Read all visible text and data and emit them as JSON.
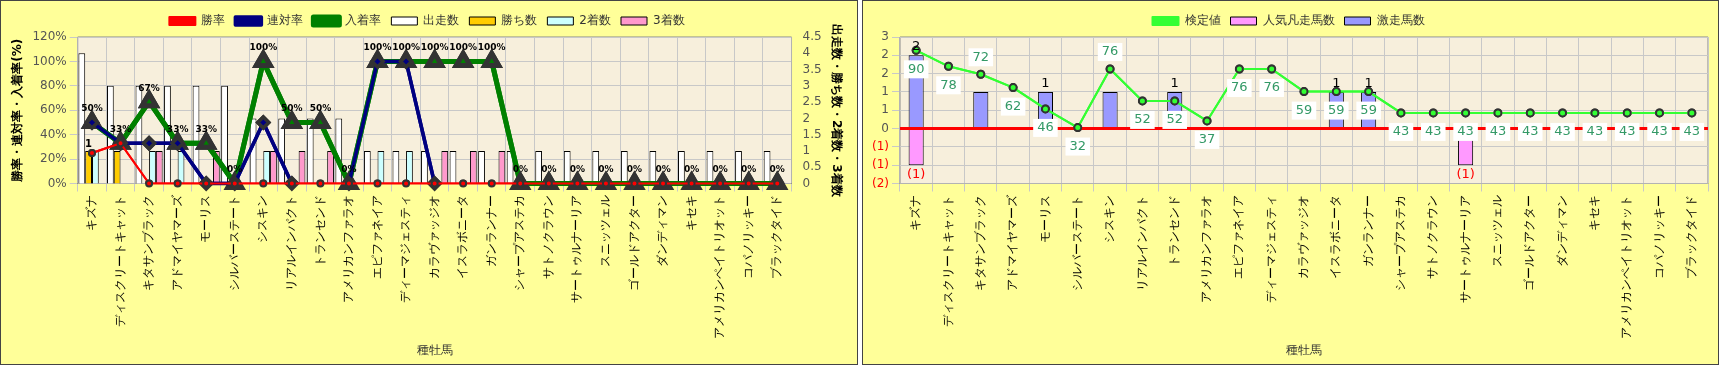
{
  "chart_data": [
    {
      "type": "bar",
      "xlabel": "種牡馬",
      "ylabel": "勝率・連対率・入着率(%)",
      "y2label": "出走数・勝ち数・2着数・3着数",
      "categories": [
        "キズナ",
        "ディスクリートキャット",
        "キタサンブラック",
        "アドマイヤマーズ",
        "モーリス",
        "シルバーステート",
        "シスキン",
        "リアルインパクト",
        "トランセンド",
        "アメリカンファラオ",
        "エピファネイア",
        "ディーマジェスティ",
        "カラヴァッジオ",
        "イスラボニータ",
        "ガンランナー",
        "シャープアステカ",
        "サトノクラウン",
        "サートゥルナーリア",
        "スニッツェル",
        "ゴールドアクター",
        "ダンディマン",
        "キセキ",
        "アメリカンペイトリオット",
        "コパノリッキー",
        "ブラックタイド"
      ],
      "ylim": [
        0,
        120
      ],
      "yticks": [
        {
          "value": 0,
          "label": "0%"
        },
        {
          "value": 20,
          "label": "20%"
        },
        {
          "value": 40,
          "label": "40%"
        },
        {
          "value": 60,
          "label": "60%"
        },
        {
          "value": 80,
          "label": "80%"
        },
        {
          "value": 100,
          "label": "100%"
        },
        {
          "value": 120,
          "label": "120%"
        }
      ],
      "y2lim": [
        0,
        4.5
      ],
      "y2ticks": [
        0,
        0.5,
        1,
        1.5,
        2,
        2.5,
        3,
        3.5,
        4,
        4.5
      ],
      "grid": true,
      "legend": "top",
      "series": [
        {
          "name": "出走数",
          "axis": "y2",
          "color": "#ffffff",
          "values": [
            4,
            3,
            3,
            3,
            3,
            3,
            2,
            2,
            2,
            2,
            1,
            1,
            1,
            1,
            1,
            1,
            1,
            1,
            1,
            1,
            1,
            1,
            1,
            1,
            1
          ]
        },
        {
          "name": "勝ち数",
          "axis": "y2",
          "color": "#ffcc00",
          "values": [
            1,
            1,
            0,
            0,
            0,
            0,
            0,
            0,
            0,
            0,
            0,
            0,
            0,
            0,
            0,
            0,
            0,
            0,
            0,
            0,
            0,
            0,
            0,
            0,
            0
          ],
          "value_labels": [
            "1",
            null,
            null,
            null,
            null,
            null,
            null,
            null,
            null,
            null,
            null,
            null,
            null,
            null,
            null,
            null,
            null,
            null,
            null,
            null,
            null,
            null,
            null,
            null,
            null
          ]
        },
        {
          "name": "2着数",
          "axis": "y2",
          "color": "#ccffff",
          "values": [
            1,
            0,
            1,
            1,
            0,
            0,
            1,
            0,
            0,
            0,
            1,
            1,
            0,
            0,
            0,
            0,
            0,
            0,
            0,
            0,
            0,
            0,
            0,
            0,
            0
          ]
        },
        {
          "name": "3着数",
          "axis": "y2",
          "color": "#ff99cc",
          "values": [
            0,
            0,
            1,
            0,
            1,
            0,
            1,
            1,
            1,
            0,
            0,
            0,
            1,
            1,
            1,
            0,
            0,
            0,
            0,
            0,
            0,
            0,
            0,
            0,
            0
          ]
        },
        {
          "name": "入着率",
          "type": "line",
          "color": "#008000",
          "marker": "triangle",
          "values": [
            50,
            33,
            67,
            33,
            33,
            0,
            100,
            50,
            50,
            0,
            100,
            100,
            100,
            100,
            100,
            0,
            0,
            0,
            0,
            0,
            0,
            0,
            0,
            0,
            0
          ],
          "value_labels": [
            "50%",
            "33%",
            "67%",
            "33%",
            "33%",
            "0%",
            "100%",
            "50%",
            "50%",
            "0%",
            "100%",
            "100%",
            "100%",
            "100%",
            "100%",
            "0%",
            "0%",
            "0%",
            "0%",
            "0%",
            "0%",
            "0%",
            "0%",
            "0%",
            "0%"
          ]
        },
        {
          "name": "連対率",
          "type": "line",
          "color": "#000080",
          "marker": "diamond",
          "values": [
            50,
            33,
            33,
            33,
            0,
            0,
            50,
            0,
            null,
            0,
            100,
            100,
            0,
            null,
            null,
            null,
            null,
            null,
            null,
            null,
            null,
            null,
            null,
            null,
            null
          ]
        },
        {
          "name": "勝率",
          "type": "line",
          "color": "#ff0000",
          "marker": "circle",
          "values": [
            25,
            33,
            0,
            0,
            0,
            0,
            0,
            0,
            0,
            0,
            0,
            0,
            0,
            0,
            0,
            0,
            0,
            0,
            0,
            0,
            0,
            0,
            0,
            0,
            0
          ]
        }
      ]
    },
    {
      "type": "bar",
      "xlabel": "種牡馬",
      "categories": [
        "キズナ",
        "ディスクリートキャット",
        "キタサンブラック",
        "アドマイヤマーズ",
        "モーリス",
        "シルバーステート",
        "シスキン",
        "リアルインパクト",
        "トランセンド",
        "アメリカンファラオ",
        "エピファネイア",
        "ディーマジェスティ",
        "カラヴァッジオ",
        "イスラボニータ",
        "ガンランナー",
        "シャープアステカ",
        "サトノクラウン",
        "サートゥルナーリア",
        "スニッツェル",
        "ゴールドアクター",
        "ダンディマン",
        "キセキ",
        "アメリカンペイトリオット",
        "コパノリッキー",
        "ブラックタイド"
      ],
      "ylim": [
        -1.5,
        2.5
      ],
      "yticks": [
        {
          "value": -1.5,
          "label": "(2)"
        },
        {
          "value": -1,
          "label": "(1)"
        },
        {
          "value": -0.5,
          "label": "(1)"
        },
        {
          "value": 0,
          "label": "0"
        },
        {
          "value": 0.5,
          "label": "1"
        },
        {
          "value": 1,
          "label": "1"
        },
        {
          "value": 1.5,
          "label": "2"
        },
        {
          "value": 2,
          "label": "2"
        },
        {
          "value": 2.5,
          "label": "3"
        }
      ],
      "y2lim": [
        -10,
        100
      ],
      "grid": true,
      "legend": "top",
      "stacked": true,
      "ref_lines": [
        {
          "axis": "y",
          "value": 0,
          "color": "#ff0000"
        }
      ],
      "series": [
        {
          "name": "人気凡走馬数",
          "color": "#ff99ff",
          "values": [
            -1,
            0,
            0,
            0,
            0,
            0,
            0,
            0,
            0,
            0,
            0,
            0,
            0,
            0,
            0,
            0,
            0,
            -1,
            0,
            0,
            0,
            0,
            0,
            0,
            0
          ],
          "value_labels": [
            "(1)",
            null,
            null,
            null,
            null,
            null,
            null,
            null,
            null,
            null,
            null,
            null,
            null,
            null,
            null,
            null,
            null,
            "(1)",
            null,
            null,
            null,
            null,
            null,
            null,
            null
          ]
        },
        {
          "name": "激走馬数",
          "color": "#9999ff",
          "values": [
            2,
            0,
            1,
            0,
            1,
            0,
            1,
            0,
            1,
            0,
            0,
            0,
            0,
            1,
            1,
            0,
            0,
            0,
            0,
            0,
            0,
            0,
            0,
            0,
            0
          ],
          "value_labels": [
            "2",
            null,
            null,
            null,
            "1",
            null,
            null,
            null,
            "1",
            null,
            null,
            null,
            null,
            "1",
            "1",
            null,
            null,
            null,
            null,
            null,
            null,
            null,
            null,
            null,
            null
          ]
        },
        {
          "name": "検定値",
          "type": "line",
          "axis": "y2",
          "color": "#33ff33",
          "marker": "circle",
          "values": [
            90,
            78,
            72,
            62,
            46,
            32,
            76,
            52,
            52,
            37,
            76,
            76,
            59,
            59,
            59,
            43,
            43,
            43,
            43,
            43,
            43,
            43,
            43,
            43,
            43
          ],
          "value_labels": [
            "90",
            "78",
            "72",
            "62",
            "46",
            "32",
            "76",
            "52",
            "52",
            "37",
            "76",
            "76",
            "59",
            "59",
            "59",
            "43",
            "43",
            "43",
            "43",
            "43",
            "43",
            "43",
            "43",
            "43",
            "43"
          ]
        }
      ]
    }
  ]
}
